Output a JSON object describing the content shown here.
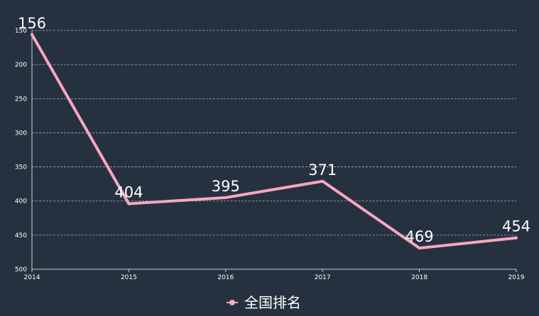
{
  "chart_data": {
    "type": "line",
    "categories": [
      "2014",
      "2015",
      "2016",
      "2017",
      "2018",
      "2019"
    ],
    "series": [
      {
        "name": "全国排名",
        "values": [
          156,
          404,
          395,
          371,
          469,
          454
        ]
      }
    ],
    "y_axis": {
      "inverted": true,
      "ylim": [
        150,
        500
      ],
      "ticks": [
        150,
        200,
        250,
        300,
        350,
        400,
        450,
        500
      ]
    },
    "grid": true,
    "legend_position": "bottom-center",
    "colors": {
      "background": "#263140",
      "line": "#f7a7be",
      "text": "#ffffff",
      "grid": "#b8c0cc"
    }
  }
}
